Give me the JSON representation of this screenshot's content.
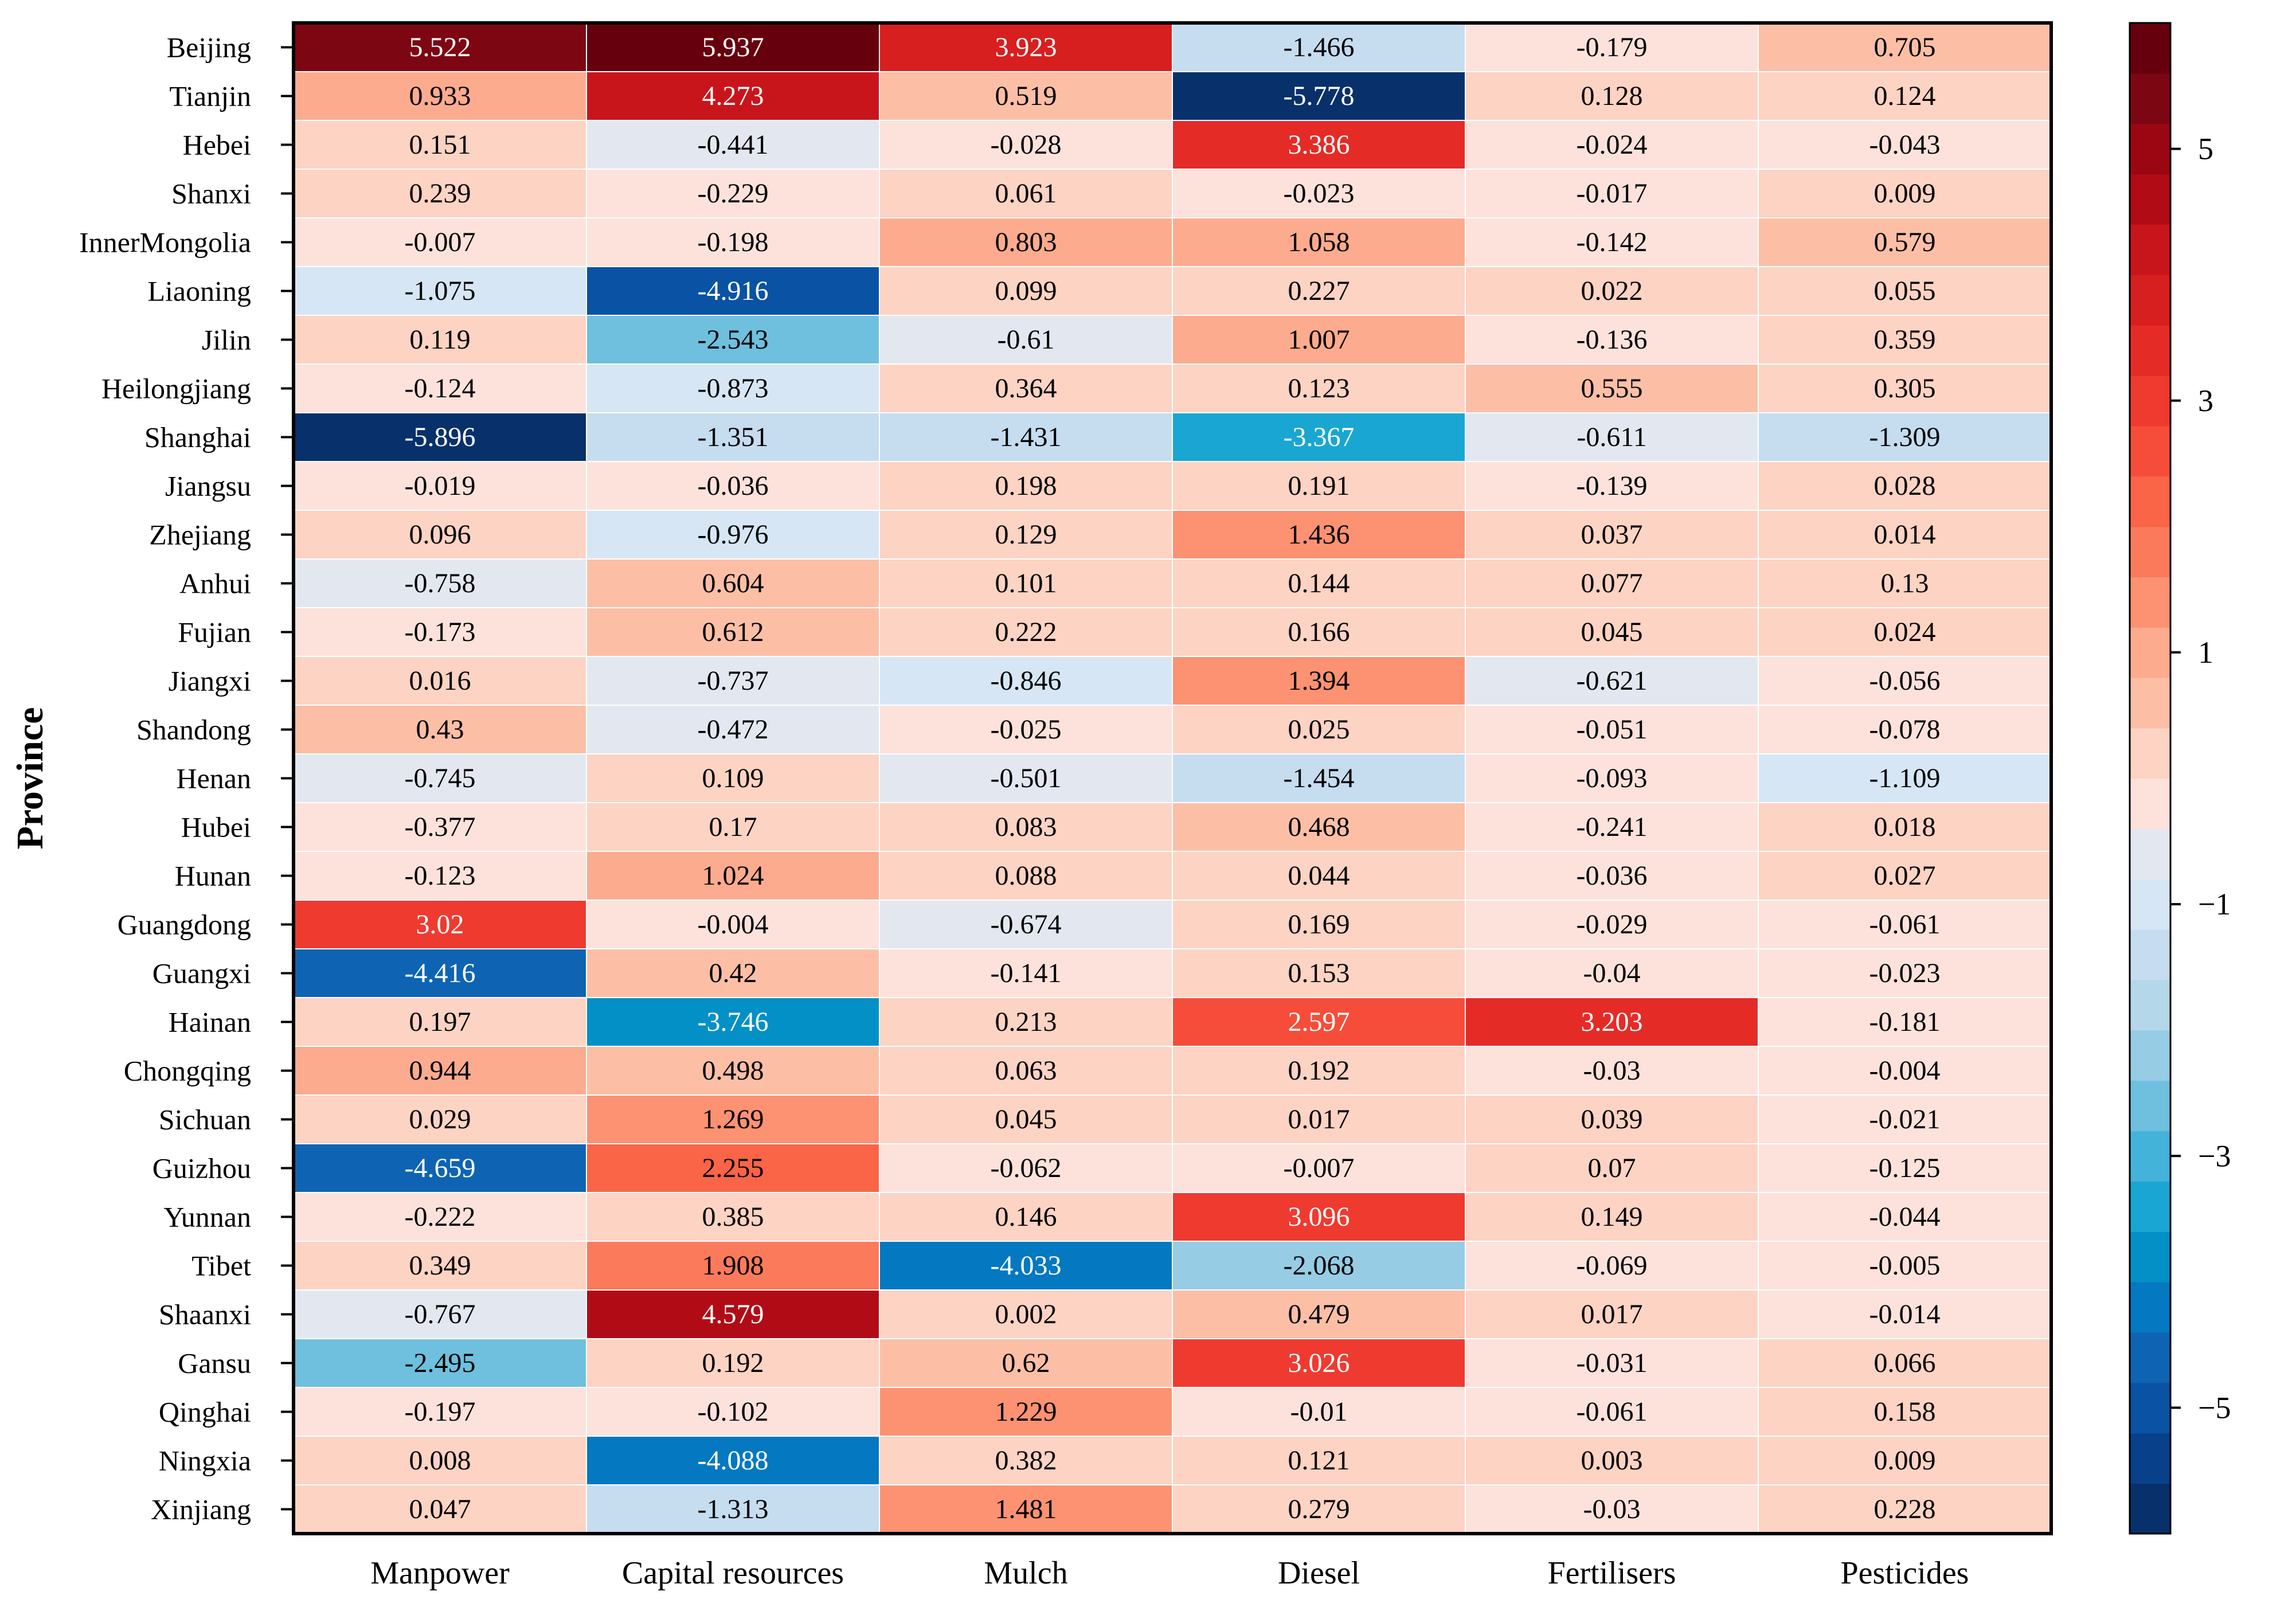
{
  "chart_data": {
    "type": "heatmap",
    "title": "",
    "xlabel": "",
    "ylabel": "Province",
    "columns": [
      "Manpower",
      "Capital resources",
      "Mulch",
      "Diesel",
      "Fertilisers",
      "Pesticides"
    ],
    "rows": [
      "Beijing",
      "Tianjin",
      "Hebei",
      "Shanxi",
      "InnerMongolia",
      "Liaoning",
      "Jilin",
      "Heilongjiang",
      "Shanghai",
      "Jiangsu",
      "Zhejiang",
      "Anhui",
      "Fujian",
      "Jiangxi",
      "Shandong",
      "Henan",
      "Hubei",
      "Hunan",
      "Guangdong",
      "Guangxi",
      "Hainan",
      "Chongqing",
      "Sichuan",
      "Guizhou",
      "Yunnan",
      "Tibet",
      "Shaanxi",
      "Gansu",
      "Qinghai",
      "Ningxia",
      "Xinjiang"
    ],
    "values": [
      [
        "5.522",
        "5.937",
        "3.923",
        "-1.466",
        "-0.179",
        "0.705"
      ],
      [
        "0.933",
        "4.273",
        "0.519",
        "-5.778",
        "0.128",
        "0.124"
      ],
      [
        "0.151",
        "-0.441",
        "-0.028",
        "3.386",
        "-0.024",
        "-0.043"
      ],
      [
        "0.239",
        "-0.229",
        "0.061",
        "-0.023",
        "-0.017",
        "0.009"
      ],
      [
        "-0.007",
        "-0.198",
        "0.803",
        "1.058",
        "-0.142",
        "0.579"
      ],
      [
        "-1.075",
        "-4.916",
        "0.099",
        "0.227",
        "0.022",
        "0.055"
      ],
      [
        "0.119",
        "-2.543",
        "-0.61",
        "1.007",
        "-0.136",
        "0.359"
      ],
      [
        "-0.124",
        "-0.873",
        "0.364",
        "0.123",
        "0.555",
        "0.305"
      ],
      [
        "-5.896",
        "-1.351",
        "-1.431",
        "-3.367",
        "-0.611",
        "-1.309"
      ],
      [
        "-0.019",
        "-0.036",
        "0.198",
        "0.191",
        "-0.139",
        "0.028"
      ],
      [
        "0.096",
        "-0.976",
        "0.129",
        "1.436",
        "0.037",
        "0.014"
      ],
      [
        "-0.758",
        "0.604",
        "0.101",
        "0.144",
        "0.077",
        "0.13"
      ],
      [
        "-0.173",
        "0.612",
        "0.222",
        "0.166",
        "0.045",
        "0.024"
      ],
      [
        "0.016",
        "-0.737",
        "-0.846",
        "1.394",
        "-0.621",
        "-0.056"
      ],
      [
        "0.43",
        "-0.472",
        "-0.025",
        "0.025",
        "-0.051",
        "-0.078"
      ],
      [
        "-0.745",
        "0.109",
        "-0.501",
        "-1.454",
        "-0.093",
        "-1.109"
      ],
      [
        "-0.377",
        "0.17",
        "0.083",
        "0.468",
        "-0.241",
        "0.018"
      ],
      [
        "-0.123",
        "1.024",
        "0.088",
        "0.044",
        "-0.036",
        "0.027"
      ],
      [
        "3.02",
        "-0.004",
        "-0.674",
        "0.169",
        "-0.029",
        "-0.061"
      ],
      [
        "-4.416",
        "0.42",
        "-0.141",
        "0.153",
        "-0.04",
        "-0.023"
      ],
      [
        "0.197",
        "-3.746",
        "0.213",
        "2.597",
        "3.203",
        "-0.181"
      ],
      [
        "0.944",
        "0.498",
        "0.063",
        "0.192",
        "-0.03",
        "-0.004"
      ],
      [
        "0.029",
        "1.269",
        "0.045",
        "0.017",
        "0.039",
        "-0.021"
      ],
      [
        "-4.659",
        "2.255",
        "-0.062",
        "-0.007",
        "0.07",
        "-0.125"
      ],
      [
        "-0.222",
        "0.385",
        "0.146",
        "3.096",
        "0.149",
        "-0.044"
      ],
      [
        "0.349",
        "1.908",
        "-4.033",
        "-2.068",
        "-0.069",
        "-0.005"
      ],
      [
        "-0.767",
        "4.579",
        "0.002",
        "0.479",
        "0.017",
        "-0.014"
      ],
      [
        "-2.495",
        "0.192",
        "0.62",
        "3.026",
        "-0.031",
        "0.066"
      ],
      [
        "-0.197",
        "-0.102",
        "1.229",
        "-0.01",
        "-0.061",
        "0.158"
      ],
      [
        "0.008",
        "-4.088",
        "0.382",
        "0.121",
        "0.003",
        "0.009"
      ],
      [
        "0.047",
        "-1.313",
        "1.481",
        "0.279",
        "-0.03",
        "0.228"
      ]
    ],
    "color_scale": {
      "vmin": -6,
      "vmax": 6,
      "colors": [
        "#08306b",
        "#08408a",
        "#0a52a3",
        "#0e64b2",
        "#0478c0",
        "#0290c6",
        "#1aa6d2",
        "#44b3d9",
        "#6ec0de",
        "#96cce4",
        "#b4d7ea",
        "#c6dcef",
        "#d6e6f4",
        "#e3e8f0",
        "#fde2dc",
        "#fdd3c3",
        "#fcbfa6",
        "#fcab8e",
        "#fc9272",
        "#fb7a5c",
        "#fa6447",
        "#f64d3a",
        "#ef3a30",
        "#e52b26",
        "#d71f1f",
        "#c8151b",
        "#b10c16",
        "#9a0713",
        "#7d0613",
        "#67000d"
      ]
    },
    "colorbar_ticks": [
      "5",
      "3",
      "1",
      "−1",
      "−3",
      "−5"
    ],
    "colorbar_tick_values": [
      5,
      3,
      1,
      -1,
      -3,
      -5
    ],
    "grid": false,
    "legend": "colorbar-right"
  }
}
